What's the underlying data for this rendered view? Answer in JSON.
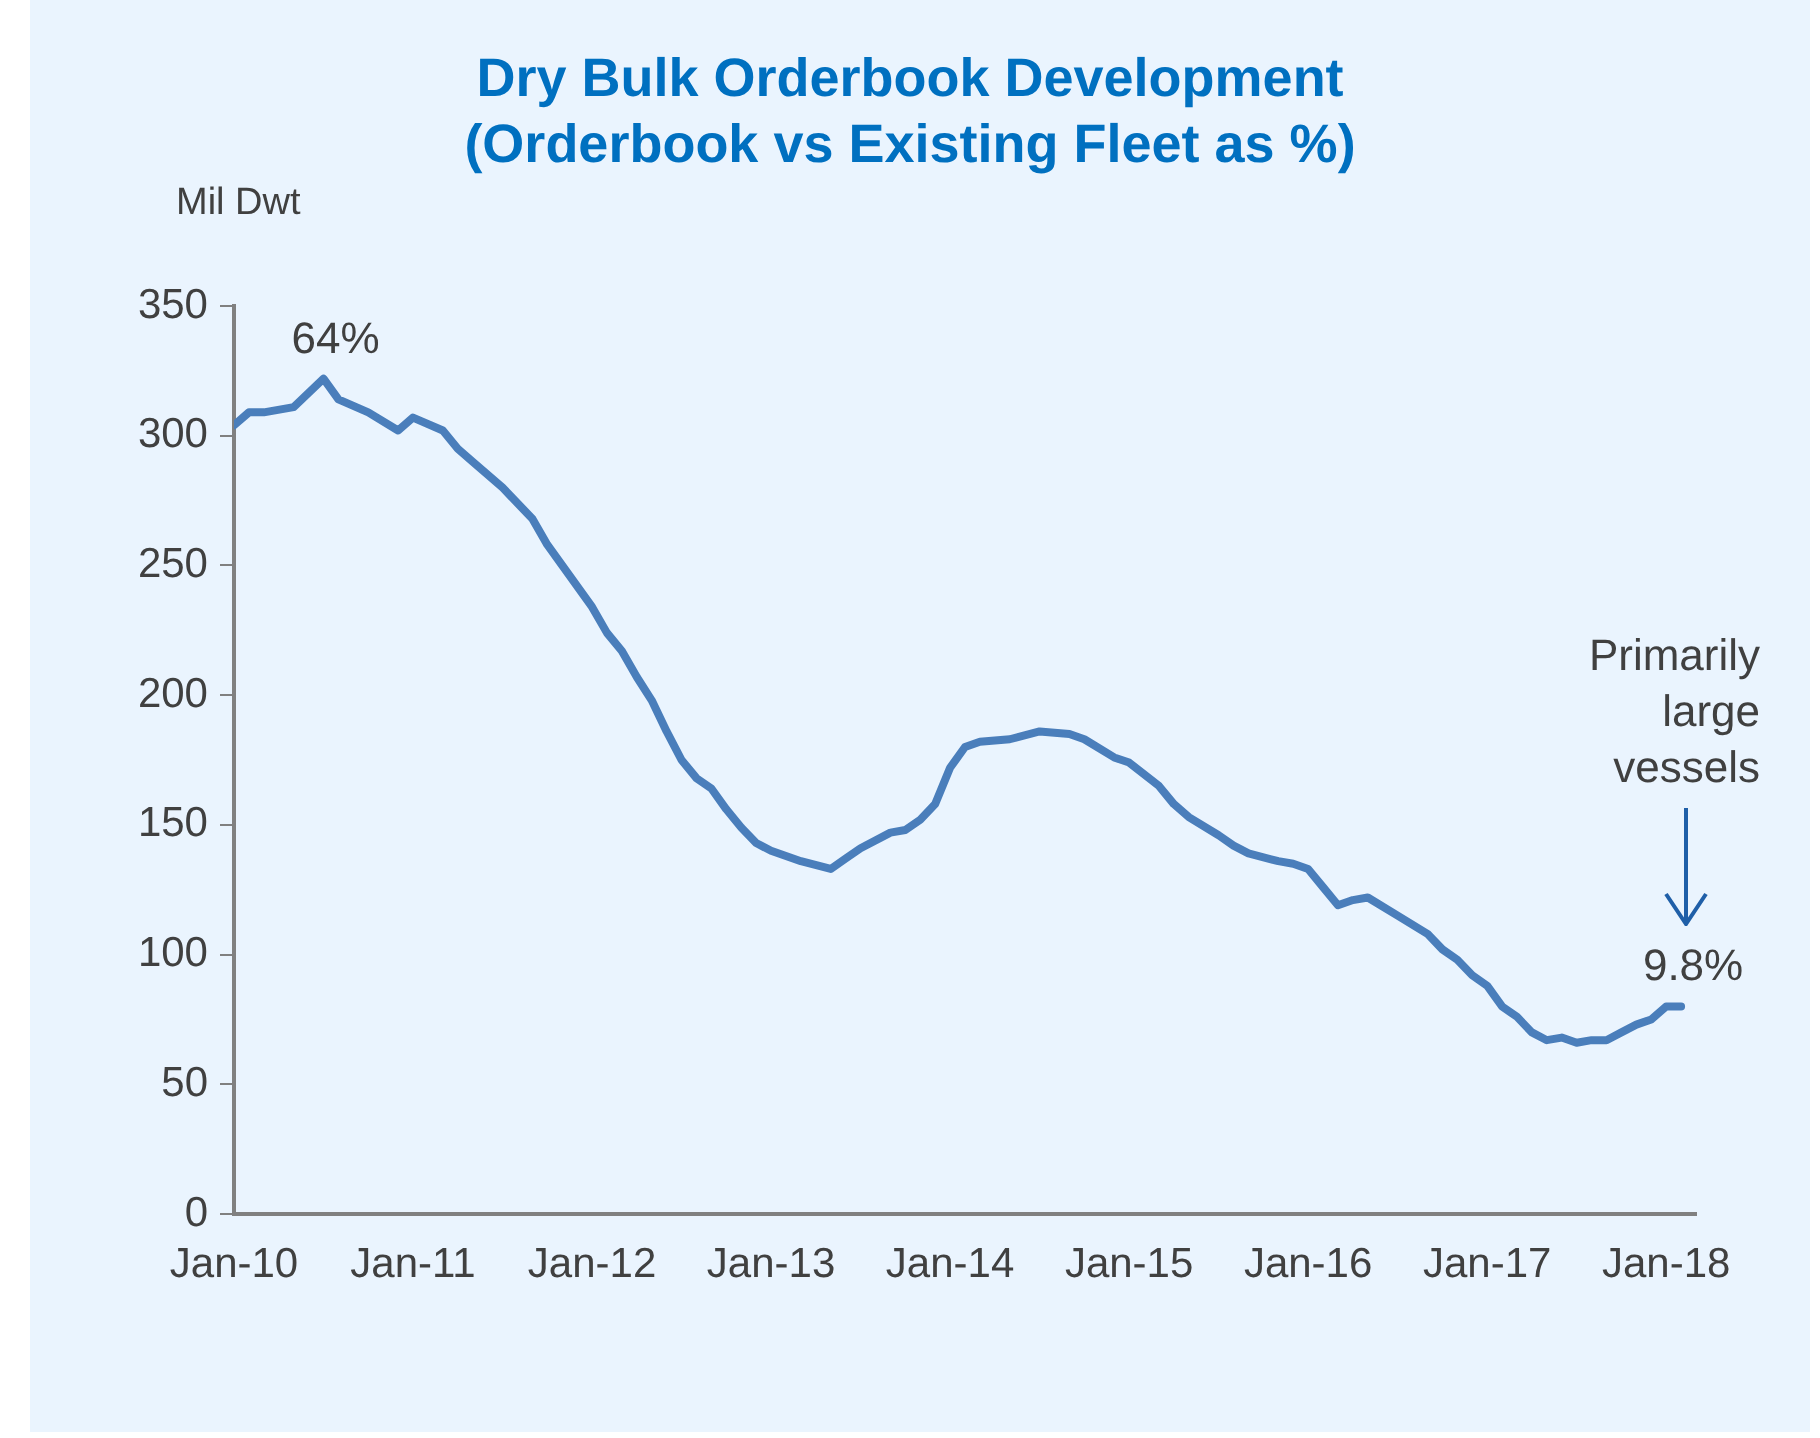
{
  "chart_data": {
    "type": "line",
    "title": "Dry Bulk Orderbook Development\n(Orderbook vs Existing Fleet as %)",
    "ylabel": "Mil Dwt",
    "x": [
      "2010-01",
      "2010-02",
      "2010-03",
      "2010-05",
      "2010-07",
      "2010-08",
      "2010-10",
      "2010-12",
      "2011-01",
      "2011-03",
      "2011-04",
      "2011-05",
      "2011-07",
      "2011-09",
      "2011-10",
      "2011-11",
      "2012-01",
      "2012-02",
      "2012-03",
      "2012-04",
      "2012-05",
      "2012-06",
      "2012-07",
      "2012-08",
      "2012-09",
      "2012-10",
      "2012-11",
      "2012-12",
      "2013-01",
      "2013-03",
      "2013-05",
      "2013-06",
      "2013-07",
      "2013-09",
      "2013-10",
      "2013-11",
      "2013-12",
      "2014-01",
      "2014-02",
      "2014-03",
      "2014-05",
      "2014-07",
      "2014-09",
      "2014-10",
      "2014-12",
      "2015-01",
      "2015-03",
      "2015-04",
      "2015-05",
      "2015-07",
      "2015-08",
      "2015-09",
      "2015-11",
      "2015-12",
      "2016-01",
      "2016-02",
      "2016-03",
      "2016-04",
      "2016-05",
      "2016-07",
      "2016-09",
      "2016-10",
      "2016-11",
      "2016-12",
      "2017-01",
      "2017-02",
      "2017-03",
      "2017-04",
      "2017-05",
      "2017-06",
      "2017-07",
      "2017-08",
      "2017-09",
      "2017-10",
      "2017-11",
      "2017-12",
      "2018-01",
      "2018-02"
    ],
    "series": [
      {
        "color": "#4a7ebb",
        "values": [
          304,
          309,
          309,
          311,
          322,
          314,
          309,
          302,
          307,
          302,
          295,
          290,
          280,
          268,
          258,
          250,
          234,
          224,
          217,
          207,
          198,
          186,
          175,
          168,
          164,
          156,
          149,
          143,
          140,
          136,
          133,
          137,
          141,
          147,
          148,
          152,
          158,
          172,
          180,
          182,
          183,
          186,
          185,
          183,
          176,
          174,
          165,
          158,
          153,
          146,
          142,
          139,
          136,
          135,
          133,
          126,
          119,
          121,
          122,
          115,
          108,
          102,
          98,
          92,
          88,
          80,
          76,
          70,
          67,
          68,
          66,
          67,
          67,
          70,
          73,
          75,
          80,
          80
        ]
      }
    ],
    "xlim": [
      "2010-01",
      "2018-03"
    ],
    "xticks": [
      {
        "value": "2010-01",
        "label": "Jan-10"
      },
      {
        "value": "2011-01",
        "label": "Jan-11"
      },
      {
        "value": "2012-01",
        "label": "Jan-12"
      },
      {
        "value": "2013-01",
        "label": "Jan-13"
      },
      {
        "value": "2014-01",
        "label": "Jan-14"
      },
      {
        "value": "2015-01",
        "label": "Jan-15"
      },
      {
        "value": "2016-01",
        "label": "Jan-16"
      },
      {
        "value": "2017-01",
        "label": "Jan-17"
      },
      {
        "value": "2018-01",
        "label": "Jan-18"
      }
    ],
    "ylim": [
      0,
      350
    ],
    "yticks": [
      0,
      50,
      100,
      150,
      200,
      250,
      300,
      350
    ],
    "marker": "none",
    "line_style": "solid",
    "annotations": [
      {
        "text": "64%",
        "x": "2010-07",
        "y": 322
      },
      {
        "text": "9.8%",
        "x": "2018-02",
        "y": 80
      },
      "Primarily large vessels"
    ]
  }
}
